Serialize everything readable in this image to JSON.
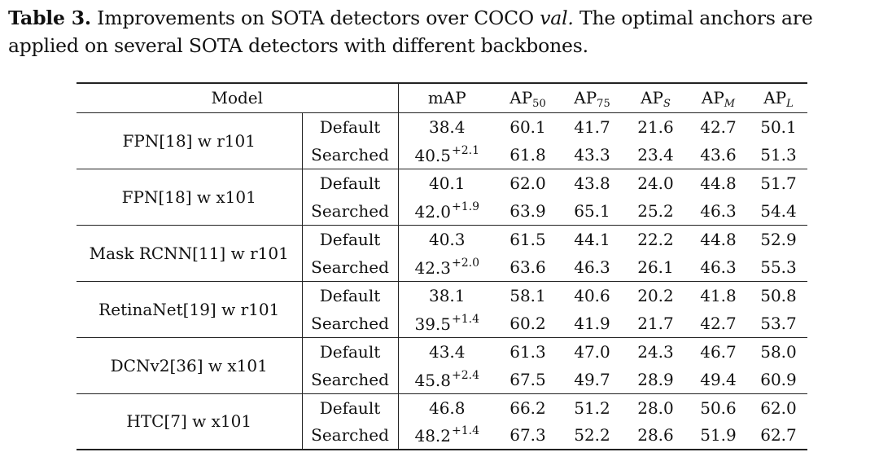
{
  "caption": {
    "label": "Table 3.",
    "text_before": "Improvements on SOTA detectors over COCO",
    "italic": "val.",
    "text_after": "The optimal anchors are applied on several SOTA detectors with different backbones."
  },
  "table": {
    "model_header": "Model",
    "metric_headers": [
      {
        "base": "mAP",
        "sub": ""
      },
      {
        "base": "AP",
        "sub": "50"
      },
      {
        "base": "AP",
        "sub": "75"
      },
      {
        "base": "AP",
        "sub": "S"
      },
      {
        "base": "AP",
        "sub": "M"
      },
      {
        "base": "AP",
        "sub": "L"
      }
    ],
    "rows": [
      {
        "model": "FPN[18] w r101",
        "default": {
          "variant": "Default",
          "map": "38.4",
          "ap50": "60.1",
          "ap75": "41.7",
          "aps": "21.6",
          "apm": "42.7",
          "apl": "50.1"
        },
        "searched": {
          "variant": "Searched",
          "map": "40.5",
          "gain": "+2.1",
          "ap50": "61.8",
          "ap75": "43.3",
          "aps": "23.4",
          "apm": "43.6",
          "apl": "51.3"
        }
      },
      {
        "model": "FPN[18] w x101",
        "default": {
          "variant": "Default",
          "map": "40.1",
          "ap50": "62.0",
          "ap75": "43.8",
          "aps": "24.0",
          "apm": "44.8",
          "apl": "51.7"
        },
        "searched": {
          "variant": "Searched",
          "map": "42.0",
          "gain": "+1.9",
          "ap50": "63.9",
          "ap75": "65.1",
          "aps": "25.2",
          "apm": "46.3",
          "apl": "54.4"
        }
      },
      {
        "model": "Mask RCNN[11] w r101",
        "default": {
          "variant": "Default",
          "map": "40.3",
          "ap50": "61.5",
          "ap75": "44.1",
          "aps": "22.2",
          "apm": "44.8",
          "apl": "52.9"
        },
        "searched": {
          "variant": "Searched",
          "map": "42.3",
          "gain": "+2.0",
          "ap50": "63.6",
          "ap75": "46.3",
          "aps": "26.1",
          "apm": "46.3",
          "apl": "55.3"
        }
      },
      {
        "model": "RetinaNet[19] w r101",
        "default": {
          "variant": "Default",
          "map": "38.1",
          "ap50": "58.1",
          "ap75": "40.6",
          "aps": "20.2",
          "apm": "41.8",
          "apl": "50.8"
        },
        "searched": {
          "variant": "Searched",
          "map": "39.5",
          "gain": "+1.4",
          "ap50": "60.2",
          "ap75": "41.9",
          "aps": "21.7",
          "apm": "42.7",
          "apl": "53.7"
        }
      },
      {
        "model": "DCNv2[36] w x101",
        "default": {
          "variant": "Default",
          "map": "43.4",
          "ap50": "61.3",
          "ap75": "47.0",
          "aps": "24.3",
          "apm": "46.7",
          "apl": "58.0"
        },
        "searched": {
          "variant": "Searched",
          "map": "45.8",
          "gain": "+2.4",
          "ap50": "67.5",
          "ap75": "49.7",
          "aps": "28.9",
          "apm": "49.4",
          "apl": "60.9"
        }
      },
      {
        "model": "HTC[7] w x101",
        "default": {
          "variant": "Default",
          "map": "46.8",
          "ap50": "66.2",
          "ap75": "51.2",
          "aps": "28.0",
          "apm": "50.6",
          "apl": "62.0"
        },
        "searched": {
          "variant": "Searched",
          "map": "48.2",
          "gain": "+1.4",
          "ap50": "67.3",
          "ap75": "52.2",
          "aps": "28.6",
          "apm": "51.9",
          "apl": "62.7"
        }
      }
    ]
  }
}
